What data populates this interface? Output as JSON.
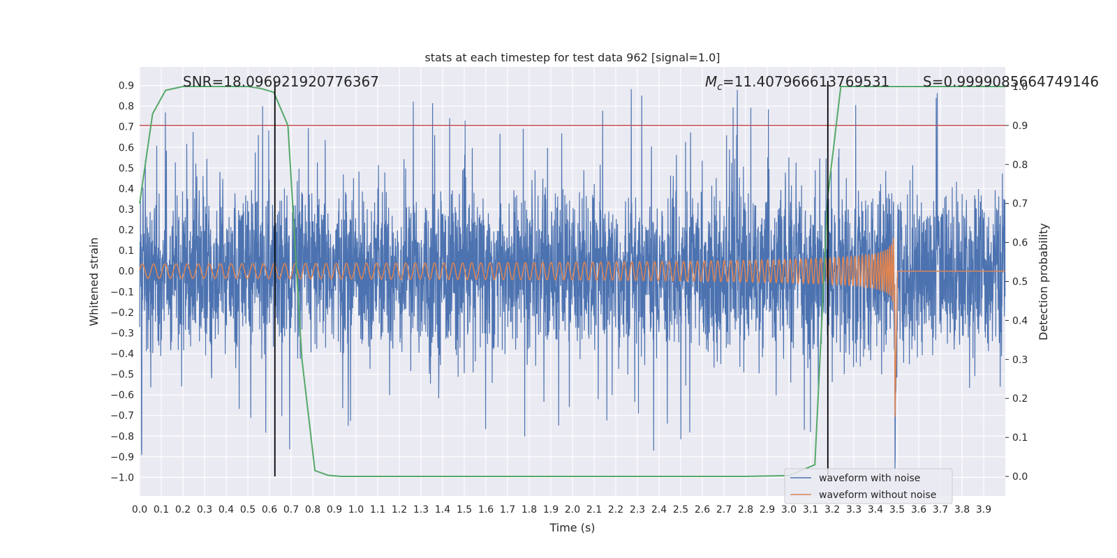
{
  "chart_data": {
    "type": "line",
    "title": "stats at each timestep for test data 962 [signal=1.0]",
    "xlabel": "Time (s)",
    "ylabel": "Whitened strain",
    "y2label": "Detection probability",
    "xlim": [
      0.0,
      4.0
    ],
    "ylim": [
      -1.09,
      0.99
    ],
    "y2lim": [
      -0.05,
      1.05
    ],
    "xticks": [
      "0.0",
      "0.1",
      "0.2",
      "0.3",
      "0.4",
      "0.5",
      "0.6",
      "0.7",
      "0.8",
      "0.9",
      "1.0",
      "1.1",
      "1.2",
      "1.3",
      "1.4",
      "1.5",
      "1.6",
      "1.7",
      "1.8",
      "1.9",
      "2.0",
      "2.1",
      "2.2",
      "2.3",
      "2.4",
      "2.5",
      "2.6",
      "2.7",
      "2.8",
      "2.9",
      "3.0",
      "3.1",
      "3.2",
      "3.3",
      "3.4",
      "3.5",
      "3.6",
      "3.7",
      "3.8",
      "3.9"
    ],
    "yticks": [
      "0.9",
      "0.8",
      "0.7",
      "0.6",
      "0.5",
      "0.4",
      "0.3",
      "0.2",
      "0.1",
      "0.0",
      "−0.1",
      "−0.2",
      "−0.3",
      "−0.4",
      "−0.5",
      "−0.6",
      "−0.7",
      "−0.8",
      "−0.9",
      "−1.0"
    ],
    "y2ticks": [
      "1.0",
      "0.9",
      "0.8",
      "0.7",
      "0.6",
      "0.5",
      "0.4",
      "0.3",
      "0.2",
      "0.1",
      "0.0"
    ],
    "grid": true,
    "legend_position": "bottom-right",
    "annotations": {
      "snr": "SNR=18.096921920776367",
      "mc_symbol": "M",
      "mc_sub": "c",
      "mc_value": "=11.407966613769531",
      "s_value": "S=0.9999085664749146"
    },
    "threshold_probability": 0.9,
    "vertical_markers_x": [
      0.625,
      3.18
    ],
    "series": [
      {
        "name": "waveform with noise",
        "color": "#4c72b0",
        "description_shape": "noise",
        "typical_amplitude": 0.35,
        "peak_amplitude": 0.9
      },
      {
        "name": "waveform without noise",
        "color": "#dd8452",
        "description_shape": "chirp",
        "start_amplitude": 0.035,
        "peak_amplitude": 0.72,
        "merger_time": 3.49,
        "start_frequency": 19,
        "end_frequency": 110
      },
      {
        "name": "",
        "color": "#55a868",
        "axis": "y2",
        "x": [
          0.0,
          0.06,
          0.12,
          0.2,
          0.35,
          0.5,
          0.56,
          0.62,
          0.685,
          0.75,
          0.81,
          0.87,
          0.93,
          1.2,
          2.0,
          2.8,
          3.0,
          3.12,
          3.18,
          3.24,
          3.3,
          3.6,
          4.0
        ],
        "y": [
          0.7,
          0.93,
          0.99,
          1.0,
          1.0,
          1.0,
          0.995,
          0.985,
          0.9,
          0.3,
          0.015,
          0.003,
          0.0,
          0.0,
          0.0,
          0.0,
          0.002,
          0.03,
          0.72,
          1.0,
          1.0,
          1.0,
          1.0
        ]
      }
    ],
    "threshold_color": "#c44e52",
    "marker_color": "#000000"
  }
}
